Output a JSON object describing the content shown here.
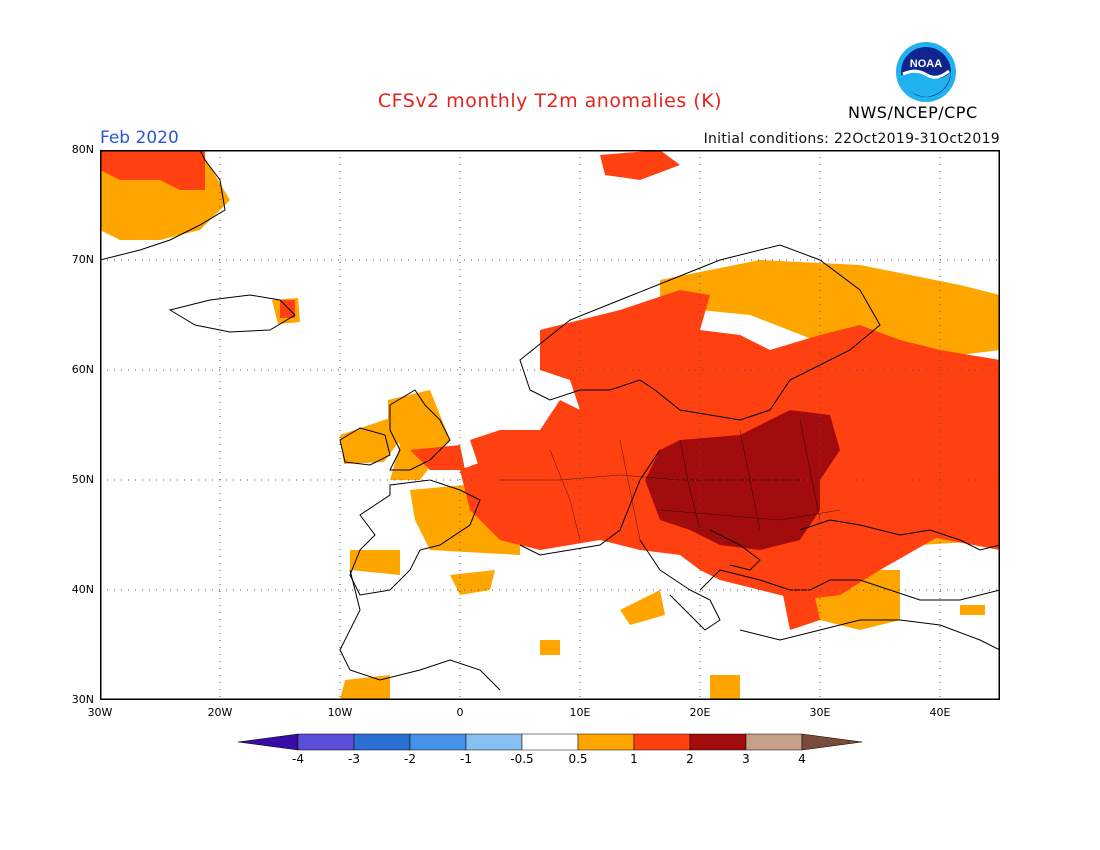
{
  "header": {
    "title": "CFSv2 monthly T2m anomalies (K)",
    "month": "Feb 2020",
    "initial_conditions": "Initial conditions: 22Oct2019-31Oct2019",
    "agency": "NWS/NCEP/CPC",
    "logo_text": "NOAA"
  },
  "axes": {
    "lat_labels": [
      "80N",
      "70N",
      "60N",
      "50N",
      "40N",
      "30N"
    ],
    "lon_labels": [
      "30W",
      "20W",
      "10W",
      "0",
      "10E",
      "20E",
      "30E",
      "40E"
    ],
    "lon_range": [
      -30,
      45
    ],
    "lat_range": [
      30,
      80
    ],
    "grid": "dotted"
  },
  "colorbar": {
    "bins": [
      {
        "color": "#3a0ca6"
      },
      {
        "color": "#5a4fd6",
        "label": "-4"
      },
      {
        "color": "#2a6fd1",
        "label": "-3"
      },
      {
        "color": "#4593e8",
        "label": "-2"
      },
      {
        "color": "#86bff2",
        "label": "-1"
      },
      {
        "color": "#ffffff",
        "label": "-0.5"
      },
      {
        "color": "#ffa500",
        "label": "0.5"
      },
      {
        "color": "#ff4010",
        "label": "1"
      },
      {
        "color": "#a30c0c",
        "label": "2"
      },
      {
        "color": "#c7a08a",
        "label": "3"
      },
      {
        "color": "#7a4a3a",
        "label": "4"
      }
    ]
  },
  "anomaly_regions": [
    {
      "category": "0.5 to 1",
      "color": "#ffa500",
      "areas": [
        "Greenland (east)",
        "Iceland (south-east tip)",
        "Ireland",
        "Great Britain",
        "France",
        "northern Scandinavia",
        "north-western Russia",
        "Turkey",
        "Caspian region"
      ]
    },
    {
      "category": "1 to 2",
      "color": "#ff4010",
      "areas": [
        "Greenland (north-east)",
        "Svalbard",
        "Norway",
        "Sweden",
        "Finland",
        "Baltic states",
        "Germany",
        "Central Europe",
        "Balkans",
        "western Russia"
      ]
    },
    {
      "category": "2 to 3",
      "color": "#a30c0c",
      "areas": [
        "Poland",
        "Ukraine",
        "Belarus",
        "Hungary",
        "Romania",
        "Slovakia"
      ]
    }
  ]
}
